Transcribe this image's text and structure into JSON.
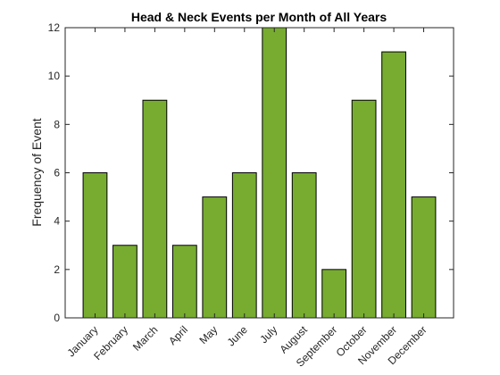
{
  "chart_data": {
    "type": "bar",
    "title": "Head & Neck Events per Month of All Years",
    "xlabel": "",
    "ylabel": "Frequency of Event",
    "categories": [
      "January",
      "February",
      "March",
      "April",
      "May",
      "June",
      "July",
      "August",
      "September",
      "October",
      "November",
      "December"
    ],
    "values": [
      6,
      3,
      9,
      3,
      5,
      6,
      12,
      6,
      2,
      9,
      11,
      5
    ],
    "ylim": [
      0,
      12
    ],
    "yticks": [
      0,
      2,
      4,
      6,
      8,
      10,
      12
    ],
    "grid": false,
    "legend": "none",
    "bar_color": "#77ac30",
    "edge_color": "#000000"
  }
}
